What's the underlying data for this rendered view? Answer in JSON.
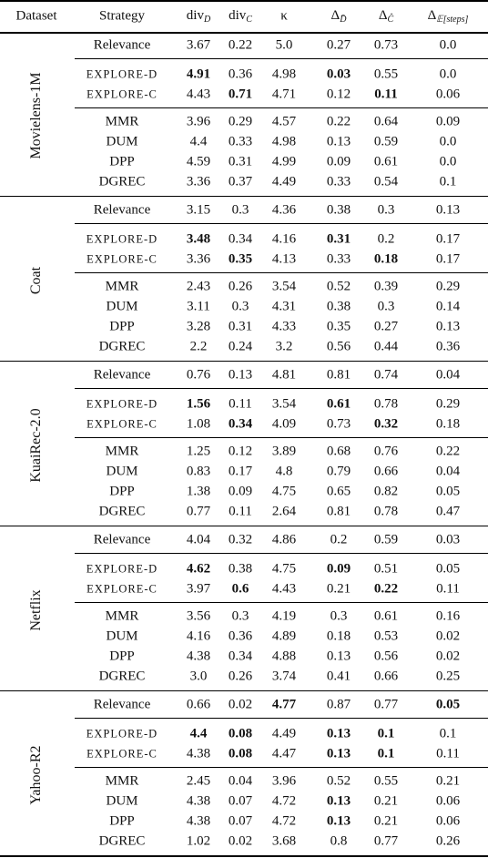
{
  "table": {
    "header": [
      {
        "base": "Dataset"
      },
      {
        "base": "Strategy"
      },
      {
        "base": "div",
        "sub": "D"
      },
      {
        "base": "div",
        "sub": "C"
      },
      {
        "base": "κ"
      },
      {
        "base": "Δ",
        "sub": "D̄"
      },
      {
        "base": "Δ",
        "sub": "Ĉ"
      },
      {
        "base": "Δ",
        "sub": "𝔼[steps]"
      }
    ],
    "groups": [
      {
        "dataset": "Movielens-1M",
        "rows": [
          {
            "strategy": "Relevance",
            "values": [
              "3.67",
              "0.22",
              "5.0",
              "0.27",
              "0.73",
              "0.0"
            ]
          },
          {
            "strategy": "EXPLORE-D",
            "values": [
              "4.91",
              "0.36",
              "4.98",
              "0.03",
              "0.55",
              "0.0"
            ],
            "bold": [
              0,
              3
            ]
          },
          {
            "strategy": "EXPLORE-C",
            "values": [
              "4.43",
              "0.71",
              "4.71",
              "0.12",
              "0.11",
              "0.06"
            ],
            "bold": [
              1,
              4
            ]
          },
          {
            "strategy": "MMR",
            "values": [
              "3.96",
              "0.29",
              "4.57",
              "0.22",
              "0.64",
              "0.09"
            ]
          },
          {
            "strategy": "DUM",
            "values": [
              "4.4",
              "0.33",
              "4.98",
              "0.13",
              "0.59",
              "0.0"
            ]
          },
          {
            "strategy": "DPP",
            "values": [
              "4.59",
              "0.31",
              "4.99",
              "0.09",
              "0.61",
              "0.0"
            ]
          },
          {
            "strategy": "DGREC",
            "values": [
              "3.36",
              "0.37",
              "4.49",
              "0.33",
              "0.54",
              "0.1"
            ]
          }
        ]
      },
      {
        "dataset": "Coat",
        "rows": [
          {
            "strategy": "Relevance",
            "values": [
              "3.15",
              "0.3",
              "4.36",
              "0.38",
              "0.3",
              "0.13"
            ]
          },
          {
            "strategy": "EXPLORE-D",
            "values": [
              "3.48",
              "0.34",
              "4.16",
              "0.31",
              "0.2",
              "0.17"
            ],
            "bold": [
              0,
              3
            ]
          },
          {
            "strategy": "EXPLORE-C",
            "values": [
              "3.36",
              "0.35",
              "4.13",
              "0.33",
              "0.18",
              "0.17"
            ],
            "bold": [
              1,
              4
            ]
          },
          {
            "strategy": "MMR",
            "values": [
              "2.43",
              "0.26",
              "3.54",
              "0.52",
              "0.39",
              "0.29"
            ]
          },
          {
            "strategy": "DUM",
            "values": [
              "3.11",
              "0.3",
              "4.31",
              "0.38",
              "0.3",
              "0.14"
            ]
          },
          {
            "strategy": "DPP",
            "values": [
              "3.28",
              "0.31",
              "4.33",
              "0.35",
              "0.27",
              "0.13"
            ]
          },
          {
            "strategy": "DGREC",
            "values": [
              "2.2",
              "0.24",
              "3.2",
              "0.56",
              "0.44",
              "0.36"
            ]
          }
        ]
      },
      {
        "dataset": "KuaiRec-2.0",
        "rows": [
          {
            "strategy": "Relevance",
            "values": [
              "0.76",
              "0.13",
              "4.81",
              "0.81",
              "0.74",
              "0.04"
            ]
          },
          {
            "strategy": "EXPLORE-D",
            "values": [
              "1.56",
              "0.11",
              "3.54",
              "0.61",
              "0.78",
              "0.29"
            ],
            "bold": [
              0,
              3
            ]
          },
          {
            "strategy": "EXPLORE-C",
            "values": [
              "1.08",
              "0.34",
              "4.09",
              "0.73",
              "0.32",
              "0.18"
            ],
            "bold": [
              1,
              4
            ]
          },
          {
            "strategy": "MMR",
            "values": [
              "1.25",
              "0.12",
              "3.89",
              "0.68",
              "0.76",
              "0.22"
            ]
          },
          {
            "strategy": "DUM",
            "values": [
              "0.83",
              "0.17",
              "4.8",
              "0.79",
              "0.66",
              "0.04"
            ]
          },
          {
            "strategy": "DPP",
            "values": [
              "1.38",
              "0.09",
              "4.75",
              "0.65",
              "0.82",
              "0.05"
            ]
          },
          {
            "strategy": "DGREC",
            "values": [
              "0.77",
              "0.11",
              "2.64",
              "0.81",
              "0.78",
              "0.47"
            ]
          }
        ]
      },
      {
        "dataset": "Netflix",
        "rows": [
          {
            "strategy": "Relevance",
            "values": [
              "4.04",
              "0.32",
              "4.86",
              "0.2",
              "0.59",
              "0.03"
            ]
          },
          {
            "strategy": "EXPLORE-D",
            "values": [
              "4.62",
              "0.38",
              "4.75",
              "0.09",
              "0.51",
              "0.05"
            ],
            "bold": [
              0,
              3
            ]
          },
          {
            "strategy": "EXPLORE-C",
            "values": [
              "3.97",
              "0.6",
              "4.43",
              "0.21",
              "0.22",
              "0.11"
            ],
            "bold": [
              1,
              4
            ]
          },
          {
            "strategy": "MMR",
            "values": [
              "3.56",
              "0.3",
              "4.19",
              "0.3",
              "0.61",
              "0.16"
            ]
          },
          {
            "strategy": "DUM",
            "values": [
              "4.16",
              "0.36",
              "4.89",
              "0.18",
              "0.53",
              "0.02"
            ]
          },
          {
            "strategy": "DPP",
            "values": [
              "4.38",
              "0.34",
              "4.88",
              "0.13",
              "0.56",
              "0.02"
            ]
          },
          {
            "strategy": "DGREC",
            "values": [
              "3.0",
              "0.26",
              "3.74",
              "0.41",
              "0.66",
              "0.25"
            ]
          }
        ]
      },
      {
        "dataset": "Yahoo-R2",
        "rows": [
          {
            "strategy": "Relevance",
            "values": [
              "0.66",
              "0.02",
              "4.77",
              "0.87",
              "0.77",
              "0.05"
            ],
            "bold": [
              2,
              5
            ]
          },
          {
            "strategy": "EXPLORE-D",
            "values": [
              "4.4",
              "0.08",
              "4.49",
              "0.13",
              "0.1",
              "0.1"
            ],
            "bold": [
              0,
              1,
              3,
              4
            ]
          },
          {
            "strategy": "EXPLORE-C",
            "values": [
              "4.38",
              "0.08",
              "4.47",
              "0.13",
              "0.1",
              "0.11"
            ],
            "bold": [
              1,
              3,
              4
            ]
          },
          {
            "strategy": "MMR",
            "values": [
              "2.45",
              "0.04",
              "3.96",
              "0.52",
              "0.55",
              "0.21"
            ]
          },
          {
            "strategy": "DUM",
            "values": [
              "4.38",
              "0.07",
              "4.72",
              "0.13",
              "0.21",
              "0.06"
            ],
            "bold": [
              3
            ]
          },
          {
            "strategy": "DPP",
            "values": [
              "4.38",
              "0.07",
              "4.72",
              "0.13",
              "0.21",
              "0.06"
            ],
            "bold": [
              3
            ]
          },
          {
            "strategy": "DGREC",
            "values": [
              "1.02",
              "0.02",
              "3.68",
              "0.8",
              "0.77",
              "0.26"
            ]
          }
        ]
      }
    ]
  }
}
